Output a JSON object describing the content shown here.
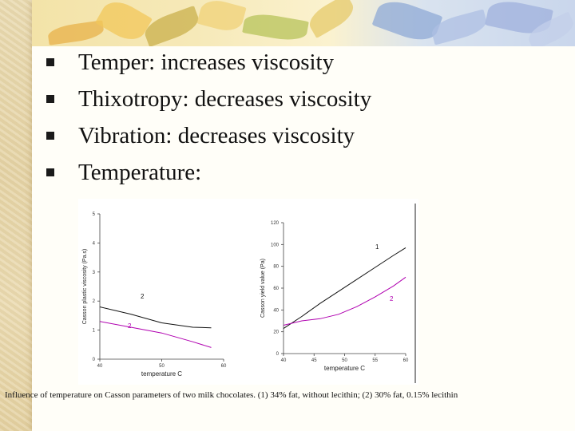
{
  "bullets": [
    {
      "text": "Temper: increases viscosity"
    },
    {
      "text": "Thixotropy: decreases viscosity"
    },
    {
      "text": "Vibration: decreases viscosity"
    },
    {
      "text": "Temperature:"
    }
  ],
  "caption": "Influence of temperature on Casson parameters of two milk chocolates. (1) 34% fat, without lecithin; (2) 30% fat, 0.15% lecithin",
  "chart_data": [
    {
      "type": "line",
      "xlabel": "temperature C",
      "ylabel": "Casson plastic viscosity (Pa.s)",
      "x_ticks": [
        "40",
        "50",
        "60"
      ],
      "y_ticks": [
        "0",
        "1",
        "2",
        "3",
        "4",
        "5"
      ],
      "xlim": [
        40,
        60
      ],
      "ylim": [
        0,
        5
      ],
      "series": [
        {
          "name": "2",
          "color": "#111111",
          "x": [
            40,
            45,
            50,
            55,
            58
          ],
          "y": [
            1.8,
            1.55,
            1.25,
            1.1,
            1.08
          ]
        },
        {
          "name": "2",
          "color": "#b000b0",
          "x": [
            40,
            45,
            50,
            55,
            58
          ],
          "y": [
            1.3,
            1.1,
            0.9,
            0.6,
            0.4
          ]
        }
      ]
    },
    {
      "type": "line",
      "xlabel": "temperature C",
      "ylabel": "Casson yield value (Pa)",
      "x_ticks": [
        "40",
        "45",
        "50",
        "55",
        "60"
      ],
      "y_ticks": [
        "0",
        "20",
        "40",
        "60",
        "80",
        "100",
        "120"
      ],
      "xlim": [
        40,
        60
      ],
      "ylim": [
        0,
        120
      ],
      "series": [
        {
          "name": "1",
          "color": "#111111",
          "x": [
            40,
            43,
            46,
            49,
            52,
            55,
            58,
            60
          ],
          "y": [
            23,
            34,
            46,
            57,
            68,
            79,
            90,
            97
          ]
        },
        {
          "name": "2",
          "color": "#b000b0",
          "x": [
            40,
            43,
            46,
            49,
            52,
            55,
            58,
            60
          ],
          "y": [
            26,
            30,
            32,
            36,
            43,
            52,
            62,
            70
          ]
        }
      ]
    }
  ]
}
